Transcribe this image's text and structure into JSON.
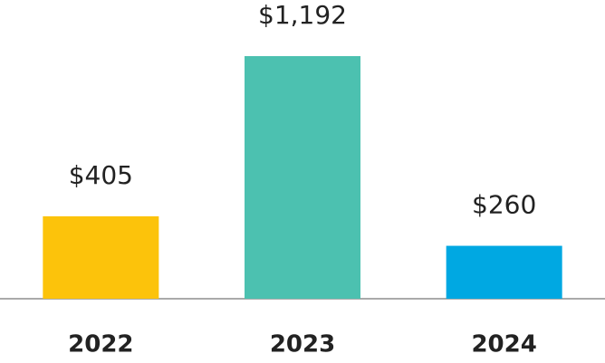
{
  "chart_data": {
    "type": "bar",
    "categories": [
      "2022",
      "2023",
      "2024"
    ],
    "values": [
      405,
      1192,
      260
    ],
    "value_labels": [
      "$405",
      "$1,192",
      "$260"
    ],
    "colors": [
      "#fcc30b",
      "#4cc1b0",
      "#00a8e2"
    ]
  }
}
